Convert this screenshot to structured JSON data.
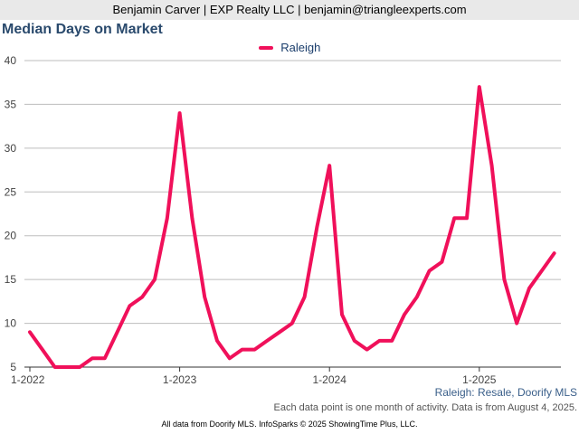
{
  "header": {
    "agent_line": "Benjamin Carver | EXP Realty LLC | benjamin@triangleexperts.com"
  },
  "chart_data": {
    "type": "line",
    "title": "Median Days on Market",
    "xlabel": "",
    "ylabel": "",
    "ylim": [
      5,
      40
    ],
    "yticks": [
      5,
      10,
      15,
      20,
      25,
      30,
      35,
      40
    ],
    "xtick_labels": [
      "1-2022",
      "1-2023",
      "1-2024",
      "1-2025"
    ],
    "xtick_months": [
      0,
      12,
      24,
      36
    ],
    "grid": true,
    "legend_position": "top-center",
    "series_color": "#f0105a",
    "series": [
      {
        "name": "Raleigh",
        "start": "2022-01",
        "values": [
          9,
          7,
          5,
          5,
          5,
          6,
          6,
          9,
          12,
          13,
          15,
          22,
          34,
          22,
          13,
          8,
          6,
          7,
          7,
          8,
          9,
          10,
          13,
          21,
          28,
          11,
          8,
          7,
          8,
          8,
          11,
          13,
          16,
          17,
          22,
          22,
          37,
          28,
          15,
          10,
          14,
          16,
          18
        ]
      }
    ]
  },
  "notes": {
    "source": "Raleigh: Resale, Doorify MLS",
    "data_note": "Each data point is one month of activity. Data is from August 4, 2025.",
    "footer": "All data from Doorify MLS. InfoSparks © 2025 ShowingTime Plus, LLC."
  }
}
